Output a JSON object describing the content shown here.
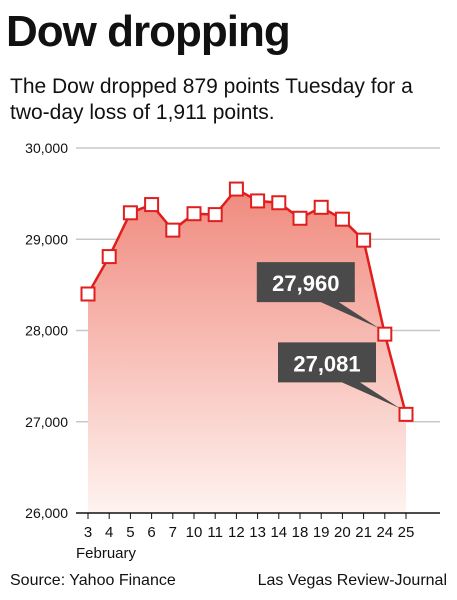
{
  "headline": "Dow dropping",
  "subtitle": "The Dow dropped 879 points Tuesday for a two-day loss of 1,911 points.",
  "source": "Source: Yahoo Finance",
  "credit": "Las Vegas Review-Journal",
  "colors": {
    "line": "#e01e1e",
    "fill_top": "#f08a7e",
    "fill_bottom": "#fde4df",
    "callout": "#4a4a4a",
    "grid": "#c8c8c8"
  },
  "chart_data": {
    "type": "line",
    "title": "Dow dropping",
    "x_label_note": "February",
    "categories": [
      "3",
      "4",
      "5",
      "6",
      "7",
      "10",
      "11",
      "12",
      "13",
      "14",
      "18",
      "19",
      "20",
      "21",
      "24",
      "25"
    ],
    "values": [
      28400,
      28810,
      29290,
      29380,
      29100,
      29280,
      29270,
      29550,
      29420,
      29400,
      29230,
      29350,
      29220,
      28990,
      27960,
      27081
    ],
    "ylim": [
      26000,
      30000
    ],
    "yticks": [
      26000,
      27000,
      28000,
      29000,
      30000
    ],
    "ytick_labels": [
      "26,000",
      "27,000",
      "28,000",
      "29,000",
      "30,000"
    ],
    "grid": true,
    "annotations": [
      {
        "index": 14,
        "label": "27,960"
      },
      {
        "index": 15,
        "label": "27,081"
      }
    ]
  }
}
